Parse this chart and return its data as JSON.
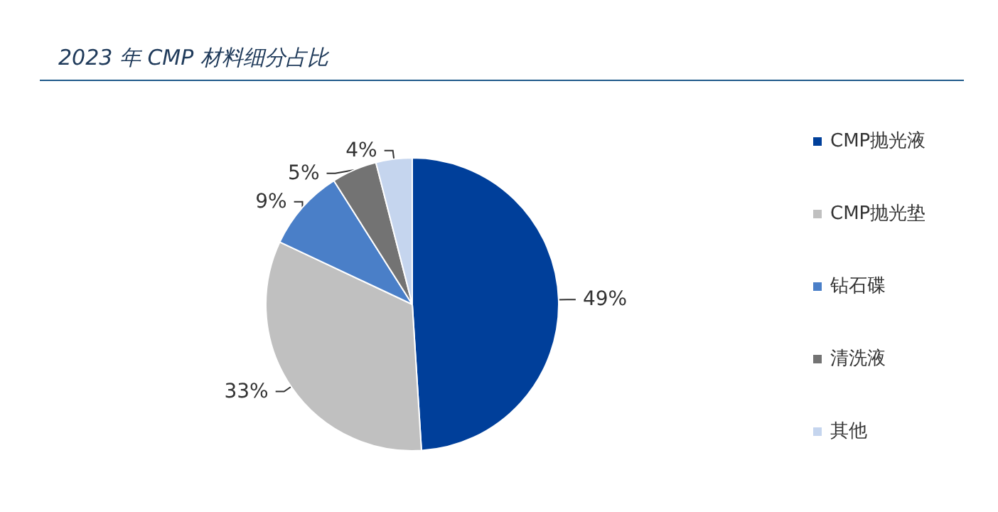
{
  "chart_data": {
    "type": "pie",
    "title": "2023 年 CMP 材料细分占比",
    "categories": [
      "CMP抛光液",
      "CMP抛光垫",
      "钻石碟",
      "清洗液",
      "其他"
    ],
    "values": [
      49,
      33,
      9,
      5,
      4
    ],
    "value_labels": [
      "49%",
      "33%",
      "9%",
      "5%",
      "4%"
    ],
    "colors": [
      "#003f9a",
      "#c0c0c0",
      "#4a7fc8",
      "#737373",
      "#c5d5ee"
    ],
    "legend": "right"
  }
}
